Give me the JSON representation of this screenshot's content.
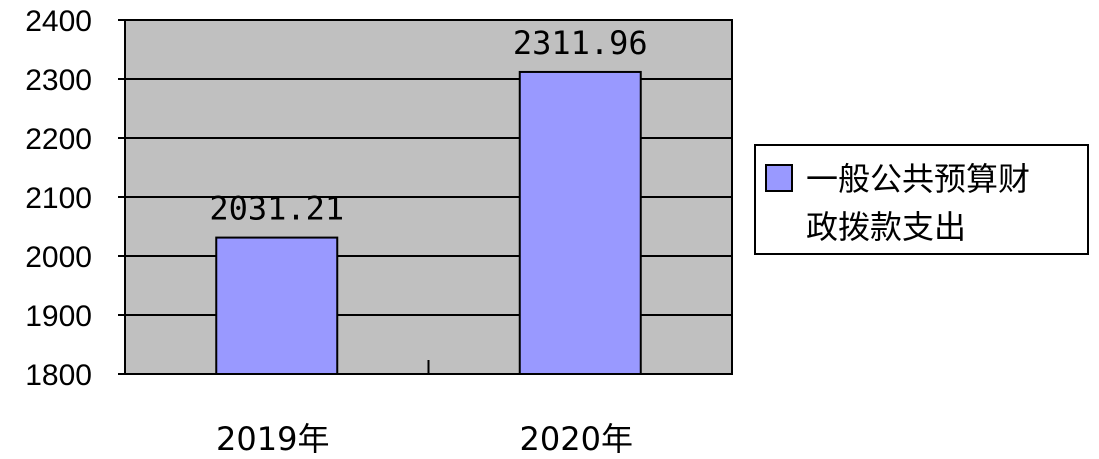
{
  "chart_data": {
    "type": "bar",
    "categories": [
      "2019年",
      "2020年"
    ],
    "series": [
      {
        "name": "一般公共预算财政拨款支出",
        "values": [
          2031.21,
          2311.96
        ],
        "labels": [
          "2031.21",
          "2311.96"
        ]
      }
    ],
    "ylim": [
      1800,
      2400
    ],
    "yticks": [
      1800,
      1900,
      2000,
      2100,
      2200,
      2300,
      2400
    ],
    "legend_lines": [
      "一般公共预算财",
      "政拨款支出"
    ],
    "grid": true,
    "legend": "right",
    "title": "",
    "xlabel": "",
    "ylabel": ""
  },
  "colors": {
    "plot_bg": "#c0c0c0",
    "bar_fill": "#9999ff",
    "bar_stroke": "#000000",
    "grid": "#000000"
  }
}
